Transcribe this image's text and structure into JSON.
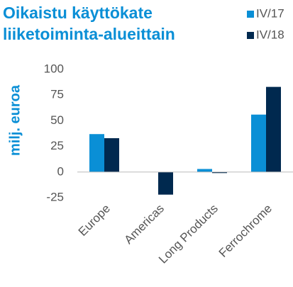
{
  "chart_data": {
    "type": "bar",
    "title": [
      "Oikaistu käyttökate",
      "liiketoiminta-alueittain"
    ],
    "y_label": "milj. euroa",
    "categories": [
      "Europe",
      "Americas",
      "Long Products",
      "Ferrochrome"
    ],
    "series": [
      {
        "name": "IV/17",
        "color": "#0a8fd6",
        "values": [
          37,
          0,
          3,
          56
        ]
      },
      {
        "name": "IV/18",
        "color": "#00294f",
        "values": [
          33,
          -22,
          -1,
          83
        ]
      }
    ],
    "ylim": [
      -25,
      100
    ],
    "yticks": [
      -25,
      0,
      25,
      50,
      75,
      100
    ],
    "grid": false,
    "legend": "top-right"
  }
}
